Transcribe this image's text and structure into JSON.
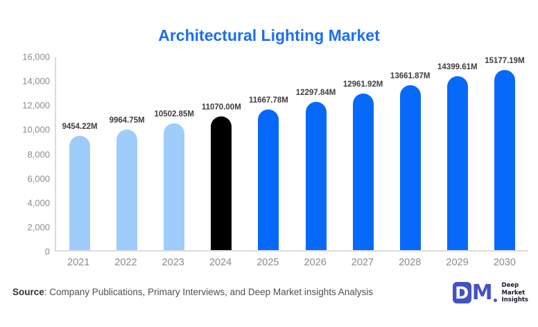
{
  "title": "Architectural Lighting Market",
  "chart_data": {
    "type": "bar",
    "title": "Architectural Lighting Market",
    "xlabel": "",
    "ylabel": "",
    "unit": "M",
    "categories": [
      "2021",
      "2022",
      "2023",
      "2024",
      "2025",
      "2026",
      "2027",
      "2028",
      "2029",
      "2030"
    ],
    "values": [
      9454.22,
      9964.75,
      10502.85,
      11070.0,
      11667.78,
      12297.84,
      12961.92,
      13661.87,
      14399.61,
      15177.19
    ],
    "value_labels": [
      "9454.22M",
      "9964.75M",
      "10502.85M",
      "11070.00M",
      "11667.78M",
      "12297.84M",
      "12961.92M",
      "13661.87M",
      "14399.61M",
      "15177.19M"
    ],
    "bar_colors": [
      "#9fcdfb",
      "#9fcdfb",
      "#9fcdfb",
      "#000000",
      "#0769f9",
      "#0769f9",
      "#0769f9",
      "#0769f9",
      "#0769f9",
      "#0769f9"
    ],
    "ylim": [
      0,
      16000
    ],
    "ytick_labels": [
      "16,000",
      "14,000",
      "12,000",
      "10,000",
      "8,000",
      "6,000",
      "4,000",
      "2,000",
      "0"
    ],
    "grid": false,
    "legend_position": "none"
  },
  "colors": {
    "title": "#1a6ef2",
    "light_blue_bar": "#9fcdfb",
    "blue_bar": "#0769f9",
    "highlight_bar": "#000000",
    "axis_line": "#dcdcdc",
    "tick_text": "#8b8b8b",
    "value_label_text": "#3d3d3d",
    "logo_accent": "#4252c7"
  },
  "footer": {
    "source_label": "Source",
    "source_rest": ": Company Publications, Primary Interviews, and Deep Market insights Analysis"
  },
  "logo": {
    "d_letter": "D",
    "m_letter": "M",
    "line1": "Deep",
    "line2": "Market",
    "line3": "Insights"
  }
}
